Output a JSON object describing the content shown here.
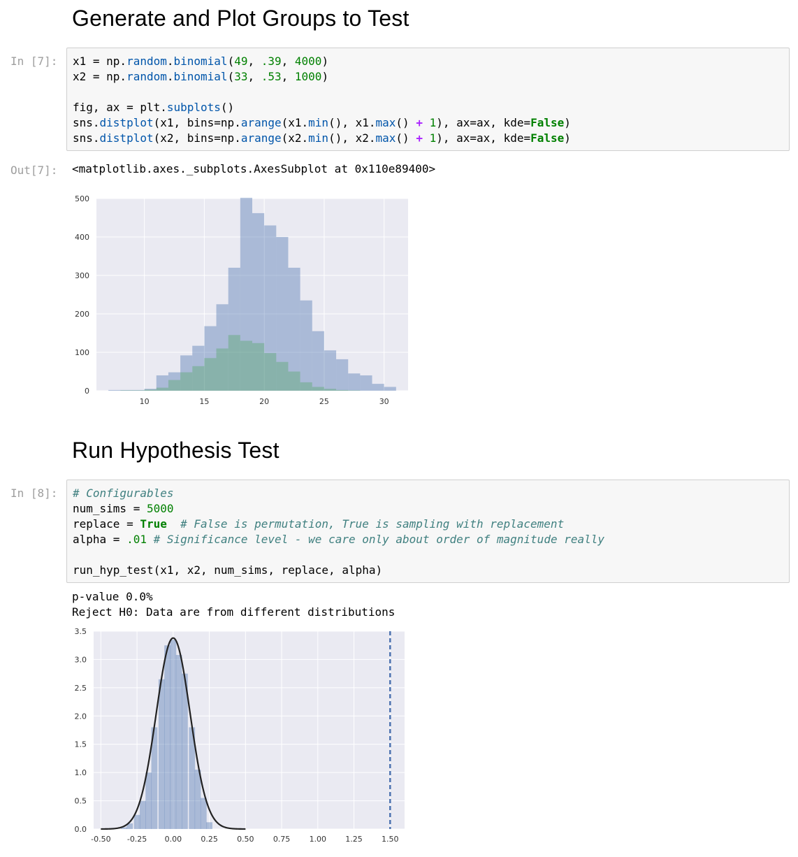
{
  "sections": [
    {
      "title": "Generate and Plot Groups to Test"
    },
    {
      "title": "Run Hypothesis Test"
    }
  ],
  "cells": [
    {
      "prompt": "In [7]:",
      "out_prompt": "Out[7]:",
      "out_text": "<matplotlib.axes._subplots.AxesSubplot at 0x110e89400>"
    },
    {
      "prompt": "In [8]:",
      "stdout": [
        "p-value 0.0%",
        "Reject H0: Data are from different distributions"
      ]
    }
  ],
  "colors": {
    "plot_bg": "#eaeaf2",
    "hist_blue": "#4c72b0",
    "hist_green": "#55a868",
    "kde_line": "#222222",
    "dash_line": "#4c72b0"
  },
  "chart_data": [
    {
      "type": "bar",
      "title": "",
      "xlabel": "",
      "ylabel": "",
      "xlim": [
        6,
        32
      ],
      "ylim": [
        0,
        500
      ],
      "xticks": [
        "10",
        "15",
        "20",
        "25",
        "30"
      ],
      "yticks": [
        "0",
        "100",
        "200",
        "300",
        "400",
        "500"
      ],
      "series": [
        {
          "name": "x1",
          "bin_starts": [
            7,
            8,
            9,
            10,
            11,
            12,
            13,
            14,
            15,
            16,
            17,
            18,
            19,
            20,
            21,
            22,
            23,
            24,
            25,
            26,
            27,
            28,
            29,
            30
          ],
          "values": [
            2,
            2,
            2,
            5,
            40,
            48,
            92,
            117,
            168,
            225,
            320,
            502,
            462,
            430,
            400,
            320,
            235,
            155,
            105,
            82,
            45,
            40,
            18,
            10
          ]
        },
        {
          "name": "x2",
          "bin_starts": [
            8,
            9,
            10,
            11,
            12,
            13,
            14,
            15,
            16,
            17,
            18,
            19,
            20,
            21,
            22,
            23,
            24,
            25,
            26,
            27
          ],
          "values": [
            1,
            1,
            3,
            8,
            28,
            48,
            64,
            85,
            110,
            145,
            130,
            124,
            98,
            75,
            50,
            22,
            10,
            5,
            2,
            1
          ]
        }
      ]
    },
    {
      "type": "area",
      "title": "",
      "xlabel": "",
      "ylabel": "",
      "xlim": [
        -0.55,
        1.6
      ],
      "ylim": [
        0,
        3.5
      ],
      "xticks": [
        "-0.50",
        "-0.25",
        "0.00",
        "0.25",
        "0.50",
        "0.75",
        "1.00",
        "1.25",
        "1.50"
      ],
      "yticks": [
        "0.0",
        "0.5",
        "1.0",
        "1.5",
        "2.0",
        "2.5",
        "3.0",
        "3.5"
      ],
      "histogram": {
        "bin_width": 0.0425,
        "bin_centers": [
          -0.34,
          -0.3,
          -0.25,
          -0.21,
          -0.17,
          -0.13,
          -0.08,
          -0.04,
          0.0,
          0.04,
          0.08,
          0.13,
          0.17,
          0.21,
          0.25
        ],
        "values": [
          0.03,
          0.1,
          0.25,
          0.5,
          1.0,
          1.8,
          2.65,
          3.25,
          3.35,
          3.08,
          2.75,
          1.8,
          1.05,
          0.55,
          0.12
        ]
      },
      "kde": {
        "mean": 0.0,
        "std": 0.117,
        "peak": 3.38
      },
      "vline_x": 1.5
    }
  ]
}
